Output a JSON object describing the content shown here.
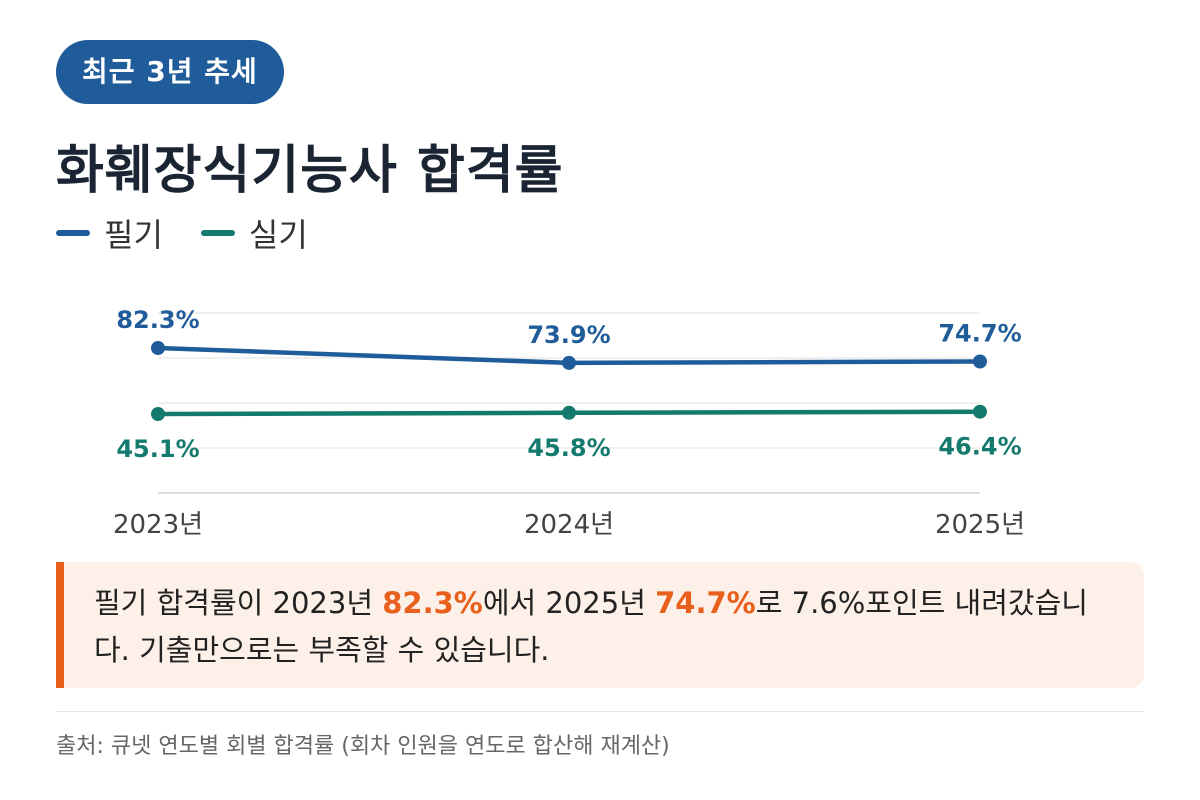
{
  "badge": "최근 3년 추세",
  "title": "화훼장식기능사 합격률",
  "legend": [
    {
      "label": "필기",
      "color": "#1f5c99"
    },
    {
      "label": "실기",
      "color": "#157a6e"
    }
  ],
  "chart_data": {
    "type": "line",
    "title": "화훼장식기능사 합격률",
    "categories": [
      "2023년",
      "2024년",
      "2025년"
    ],
    "series": [
      {
        "name": "필기",
        "values": [
          82.3,
          73.9,
          74.7
        ],
        "labels": [
          "82.3%",
          "73.9%",
          "74.7%"
        ],
        "color": "#1f5c99"
      },
      {
        "name": "실기",
        "values": [
          45.1,
          45.8,
          46.4
        ],
        "labels": [
          "45.1%",
          "45.8%",
          "46.4%"
        ],
        "color": "#157a6e"
      }
    ],
    "xlabel": "",
    "ylabel": "",
    "grid": true,
    "legend_position": "top-left"
  },
  "callout": {
    "t1": "필기 합격률이 2023년 ",
    "v1": "82.3%",
    "t2": "에서 2025년 ",
    "v2": "74.7%",
    "t3": "로 7.6%포인트 내려갔습니다. 기출만으로는 부족할 수 있습니다.",
    "accent_color": "#e8601c"
  },
  "source": "출처: 큐넷 연도별 회별 합격률 (회차 인원을 연도로 합산해 재계산)"
}
